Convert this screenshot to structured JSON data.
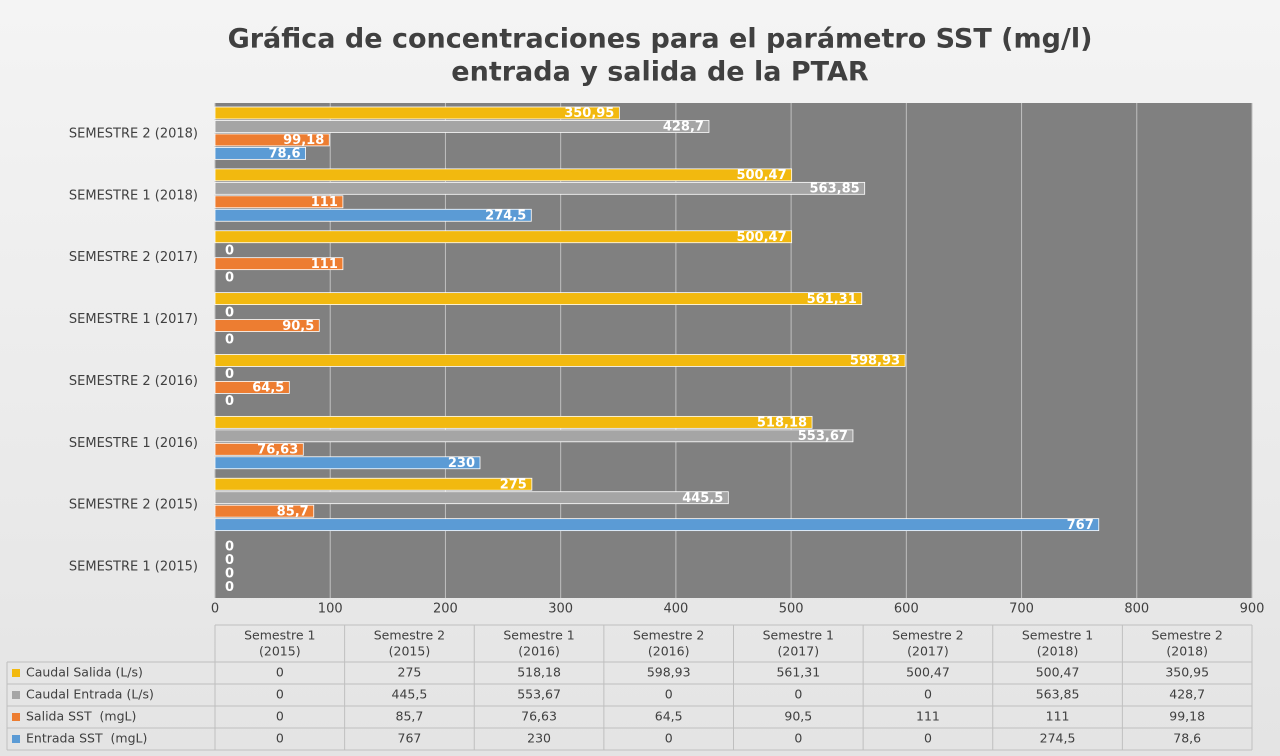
{
  "chart_data": {
    "type": "hbar",
    "title": "Gráfica de concentraciones para el parámetro SST (mg/l)",
    "subtitle": "entrada y salida de la PTAR",
    "categories": [
      "SEMESTRE 1 (2015)",
      "SEMESTRE 2 (2015)",
      "SEMESTRE 1 (2016)",
      "SEMESTRE 2 (2016)",
      "SEMESTRE 1 (2017)",
      "SEMESTRE 2 (2017)",
      "SEMESTRE 1 (2018)",
      "SEMESTRE 2 (2018)"
    ],
    "table_columns": [
      [
        "Semestre 1",
        "(2015)"
      ],
      [
        "Semestre 2",
        "(2015)"
      ],
      [
        "Semestre 1",
        "(2016)"
      ],
      [
        "Semestre 2",
        "(2016)"
      ],
      [
        "Semestre 1",
        "(2017)"
      ],
      [
        "Semestre 2",
        "(2017)"
      ],
      [
        "Semestre 1",
        "(2018)"
      ],
      [
        "Semestre 2",
        "(2018)"
      ]
    ],
    "series": [
      {
        "name": "Caudal Salida (L/s)",
        "color": "#f2b90f",
        "values": [
          0,
          275,
          518.18,
          598.93,
          561.31,
          500.47,
          500.47,
          350.95
        ],
        "value_labels": [
          "0",
          "275",
          "518,18",
          "598,93",
          "561,31",
          "500,47",
          "500,47",
          "350,95"
        ]
      },
      {
        "name": "Caudal Entrada (L/s)",
        "color": "#a5a5a5",
        "values": [
          0,
          445.5,
          553.67,
          0,
          0,
          0,
          563.85,
          428.7
        ],
        "value_labels": [
          "0",
          "445,5",
          "553,67",
          "0",
          "0",
          "0",
          "563,85",
          "428,7"
        ]
      },
      {
        "name": "Salida SST  (mgL)",
        "color": "#ed7d31",
        "values": [
          0,
          85.7,
          76.63,
          64.5,
          90.5,
          111,
          111,
          99.18
        ],
        "value_labels": [
          "0",
          "85,7",
          "76,63",
          "64,5",
          "90,5",
          "111",
          "111",
          "99,18"
        ]
      },
      {
        "name": "Entrada SST  (mgL)",
        "color": "#5b9bd5",
        "values": [
          0,
          767,
          230,
          0,
          0,
          0,
          274.5,
          78.6
        ],
        "value_labels": [
          "0",
          "767",
          "230",
          "0",
          "0",
          "0",
          "274,5",
          "78,6"
        ]
      }
    ],
    "xlim": [
      0,
      900
    ],
    "xticks": [
      0,
      100,
      200,
      300,
      400,
      500,
      600,
      700,
      800,
      900
    ],
    "grid": true
  }
}
